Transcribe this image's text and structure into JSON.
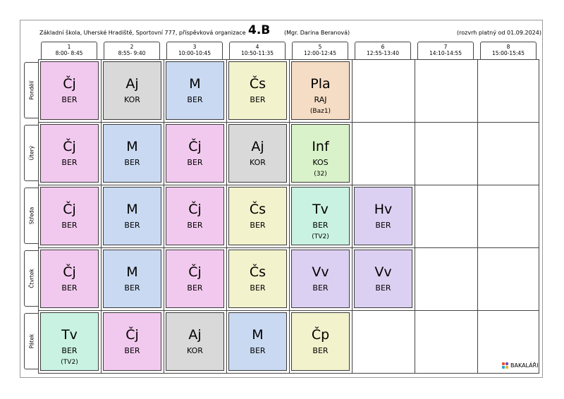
{
  "header": {
    "school": "Základní škola, Uherské Hradiště, Sportovní 777, příspěvková organizace",
    "class_name": "4.B",
    "teacher": "(Mgr. Darina Beranová)",
    "validity": "(rozvrh platný od 01.09.2024)"
  },
  "periods": [
    {
      "num": "1",
      "time": "8:00- 8:45"
    },
    {
      "num": "2",
      "time": "8:55- 9:40"
    },
    {
      "num": "3",
      "time": "10:00-10:45"
    },
    {
      "num": "4",
      "time": "10:50-11:35"
    },
    {
      "num": "5",
      "time": "12:00-12:45"
    },
    {
      "num": "6",
      "time": "12:55-13:40"
    },
    {
      "num": "7",
      "time": "14:10-14:55"
    },
    {
      "num": "8",
      "time": "15:00-15:45"
    }
  ],
  "days": [
    {
      "name": "Pondělí",
      "lessons": [
        {
          "subject": "Čj",
          "teacher": "BER",
          "room": "",
          "color": "#f2c9ee"
        },
        {
          "subject": "Aj",
          "teacher": "KOR",
          "room": "",
          "color": "#d9d9d9"
        },
        {
          "subject": "M",
          "teacher": "BER",
          "room": "",
          "color": "#c9d9f2"
        },
        {
          "subject": "Čs",
          "teacher": "BER",
          "room": "",
          "color": "#f2f2cc"
        },
        {
          "subject": "Pla",
          "teacher": "RAJ",
          "room": "(Baz1)",
          "color": "#f5dcc4"
        }
      ]
    },
    {
      "name": "Úterý",
      "lessons": [
        {
          "subject": "Čj",
          "teacher": "BER",
          "room": "",
          "color": "#f2c9ee"
        },
        {
          "subject": "M",
          "teacher": "BER",
          "room": "",
          "color": "#c9d9f2"
        },
        {
          "subject": "Čj",
          "teacher": "BER",
          "room": "",
          "color": "#f2c9ee"
        },
        {
          "subject": "Aj",
          "teacher": "KOR",
          "room": "",
          "color": "#d9d9d9"
        },
        {
          "subject": "Inf",
          "teacher": "KOS",
          "room": "(32)",
          "color": "#d9f2c9"
        }
      ]
    },
    {
      "name": "Středa",
      "lessons": [
        {
          "subject": "Čj",
          "teacher": "BER",
          "room": "",
          "color": "#f2c9ee"
        },
        {
          "subject": "M",
          "teacher": "BER",
          "room": "",
          "color": "#c9d9f2"
        },
        {
          "subject": "Čj",
          "teacher": "BER",
          "room": "",
          "color": "#f2c9ee"
        },
        {
          "subject": "Čs",
          "teacher": "BER",
          "room": "",
          "color": "#f2f2cc"
        },
        {
          "subject": "Tv",
          "teacher": "BER",
          "room": "(TV2)",
          "color": "#c9f2e2"
        },
        {
          "subject": "Hv",
          "teacher": "BER",
          "room": "",
          "color": "#dcd0f2"
        }
      ]
    },
    {
      "name": "Čtvrtek",
      "lessons": [
        {
          "subject": "Čj",
          "teacher": "BER",
          "room": "",
          "color": "#f2c9ee"
        },
        {
          "subject": "M",
          "teacher": "BER",
          "room": "",
          "color": "#c9d9f2"
        },
        {
          "subject": "Čj",
          "teacher": "BER",
          "room": "",
          "color": "#f2c9ee"
        },
        {
          "subject": "Čs",
          "teacher": "BER",
          "room": "",
          "color": "#f2f2cc"
        },
        {
          "subject": "Vv",
          "teacher": "BER",
          "room": "",
          "color": "#dcd0f2"
        },
        {
          "subject": "Vv",
          "teacher": "BER",
          "room": "",
          "color": "#dcd0f2"
        }
      ]
    },
    {
      "name": "Pátek",
      "lessons": [
        {
          "subject": "Tv",
          "teacher": "BER",
          "room": "(TV2)",
          "color": "#c9f2e2"
        },
        {
          "subject": "Čj",
          "teacher": "BER",
          "room": "",
          "color": "#f2c9ee"
        },
        {
          "subject": "Aj",
          "teacher": "KOR",
          "room": "",
          "color": "#d9d9d9"
        },
        {
          "subject": "M",
          "teacher": "BER",
          "room": "",
          "color": "#c9d9f2"
        },
        {
          "subject": "Čp",
          "teacher": "BER",
          "room": "",
          "color": "#f2f2cc"
        }
      ]
    }
  ],
  "logo": {
    "text": "BAKALÁŘI"
  }
}
